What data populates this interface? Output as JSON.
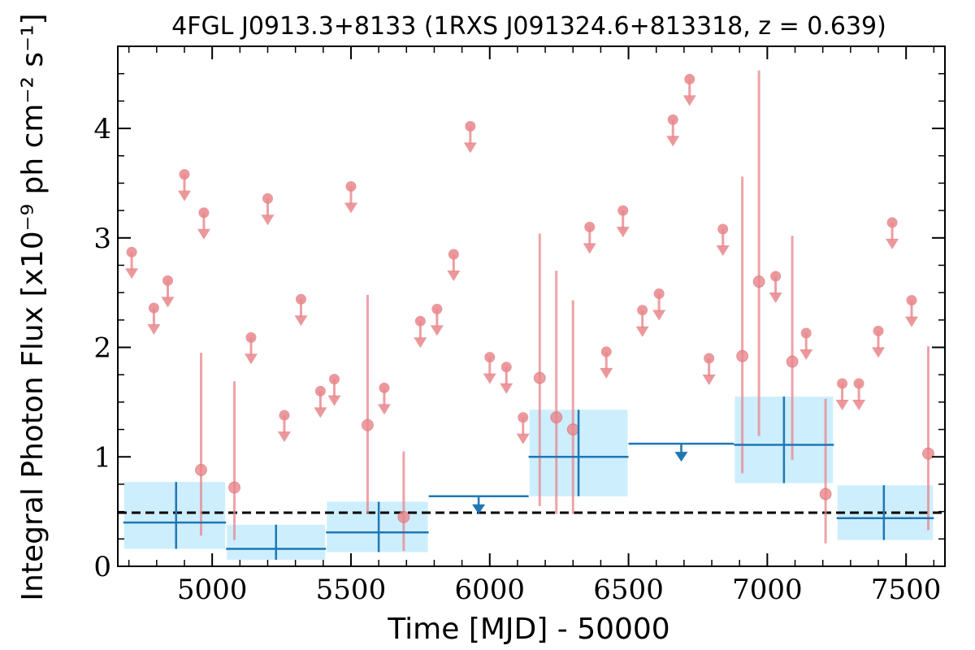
{
  "chart_data": {
    "type": "scatter",
    "title": "4FGL J0913.3+8133 (1RXS J091324.6+813318, z = 0.639)",
    "xlabel": "Time [MJD] - 50000",
    "ylabel": "Integral Photon Flux [x10⁻⁹ ph cm⁻² s⁻¹]",
    "xlim": [
      4660,
      7640
    ],
    "ylim": [
      0,
      4.75
    ],
    "xticks": [
      5000,
      5500,
      6000,
      6500,
      7000,
      7500
    ],
    "xtick_labels": [
      "5000",
      "5500",
      "6000",
      "6500",
      "7000",
      "7500"
    ],
    "yticks": [
      0,
      1,
      2,
      3,
      4
    ],
    "ytick_labels": [
      "0",
      "1",
      "2",
      "3",
      "4"
    ],
    "mean_flux": 0.49,
    "colors": {
      "short_bins": "#e8868b",
      "long_bins": "#1f77b4",
      "band_fill": "#cdeefd",
      "mean_line": "#000000"
    },
    "short_bins": {
      "name": "",
      "upper_limits": {
        "x": [
          4710,
          4790,
          4840,
          4900,
          4970,
          5140,
          5200,
          5260,
          5320,
          5390,
          5440,
          5500,
          5620,
          5750,
          5810,
          5870,
          5930,
          6060,
          6000,
          6120,
          6360,
          6420,
          6480,
          6550,
          6610,
          6660,
          6720,
          6790,
          6840,
          7030,
          7140,
          7270,
          7330,
          7400,
          7450,
          7520
        ],
        "y": [
          2.87,
          2.36,
          2.61,
          3.58,
          3.23,
          2.09,
          3.36,
          1.38,
          2.44,
          1.6,
          1.71,
          3.47,
          1.63,
          2.24,
          2.35,
          2.85,
          4.02,
          1.82,
          1.91,
          1.36,
          3.1,
          1.96,
          3.25,
          2.34,
          2.49,
          4.08,
          4.45,
          1.9,
          3.08,
          2.65,
          2.13,
          1.67,
          1.67,
          2.15,
          3.14,
          2.43
        ]
      },
      "detections": {
        "x": [
          4960,
          5080,
          5560,
          5690,
          6180,
          6240,
          6300,
          6910,
          6970,
          7090,
          7210,
          7580
        ],
        "y": [
          0.88,
          0.72,
          1.29,
          0.45,
          1.72,
          1.36,
          1.25,
          1.92,
          2.6,
          1.87,
          0.66,
          1.03
        ],
        "y_low": [
          0.28,
          0.24,
          0.48,
          0.14,
          0.55,
          0.48,
          0.48,
          0.85,
          1.19,
          0.97,
          0.21,
          0.33
        ],
        "y_high": [
          1.95,
          1.69,
          2.48,
          1.05,
          3.04,
          2.7,
          2.43,
          3.56,
          4.53,
          3.02,
          1.53,
          2.01
        ]
      }
    },
    "long_bins": {
      "name": "",
      "detections": {
        "x": [
          4870,
          5230,
          5600,
          6320,
          7060,
          7420
        ],
        "x_low": [
          4680,
          5050,
          5410,
          6140,
          6880,
          7250
        ],
        "x_high": [
          5050,
          5410,
          5780,
          6500,
          7240,
          7600
        ],
        "y": [
          0.4,
          0.16,
          0.31,
          1.0,
          1.11,
          0.44
        ],
        "y_low": [
          0.16,
          0.06,
          0.13,
          0.64,
          0.76,
          0.24
        ],
        "y_high": [
          0.77,
          0.38,
          0.59,
          1.43,
          1.55,
          0.74
        ]
      },
      "upper_limits": {
        "x": [
          5960,
          6690
        ],
        "x_low": [
          5780,
          6500
        ],
        "x_high": [
          6140,
          6880
        ],
        "y": [
          0.64,
          1.12
        ]
      }
    }
  }
}
